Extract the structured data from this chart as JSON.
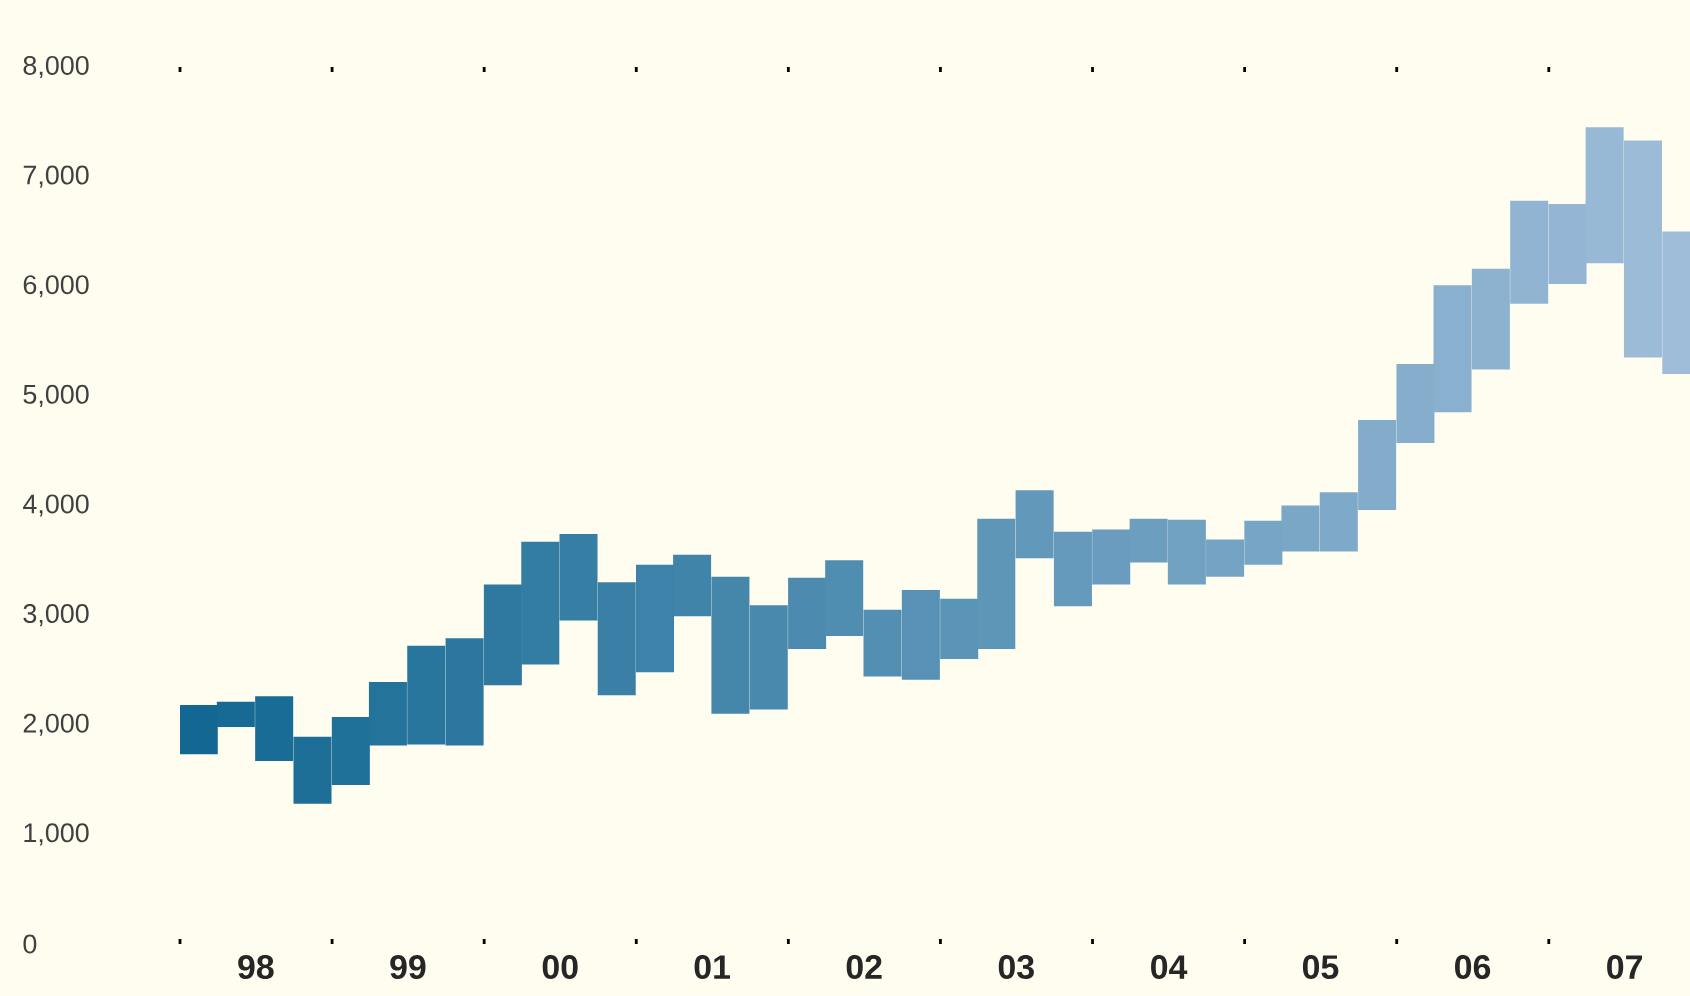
{
  "chart_data": {
    "type": "bar",
    "x": [
      "1998-02-15",
      "1998-05-15",
      "1998-08-15",
      "1998-11-15",
      "1999-02-15",
      "1999-05-15",
      "1999-08-15",
      "1999-11-15",
      "2000-02-15",
      "2000-05-15",
      "2000-08-15",
      "2000-11-15",
      "2001-02-15",
      "2001-05-15",
      "2001-08-15",
      "2001-11-15",
      "2002-02-15",
      "2002-05-15",
      "2002-08-15",
      "2002-11-15",
      "2003-02-15",
      "2003-05-15",
      "2003-08-15",
      "2003-11-15",
      "2004-02-15",
      "2004-05-15",
      "2004-08-15",
      "2004-11-15",
      "2005-02-15",
      "2005-05-15",
      "2005-08-15",
      "2005-11-15",
      "2006-02-15",
      "2006-05-15",
      "2006-08-15",
      "2006-11-15",
      "2007-02-15",
      "2007-05-15",
      "2007-08-15",
      "2007-11-15"
    ],
    "base": [
      1730,
      1980,
      1670,
      1280,
      1450,
      1810,
      1820,
      1810,
      2360,
      2550,
      2950,
      2270,
      2480,
      2990,
      2100,
      2140,
      2690,
      2810,
      2440,
      2410,
      2600,
      2690,
      3520,
      3080,
      3280,
      3480,
      3280,
      3350,
      3460,
      3580,
      3580,
      3960,
      4570,
      4850,
      5240,
      5840,
      6020,
      6210,
      5350,
      5200
    ],
    "values": [
      450,
      230,
      590,
      610,
      620,
      580,
      900,
      980,
      920,
      1120,
      790,
      1030,
      980,
      560,
      1250,
      950,
      650,
      690,
      610,
      820,
      550,
      1190,
      620,
      680,
      500,
      400,
      590,
      340,
      400,
      420,
      540,
      820,
      720,
      1160,
      920,
      940,
      730,
      1240,
      1980,
      1300
    ],
    "colors": [
      "#126892",
      "#166a94",
      "#196c96",
      "#1d6f97",
      "#207199",
      "#24739b",
      "#28759d",
      "#2b779f",
      "#2f79a1",
      "#337ca2",
      "#367ea4",
      "#3a80a6",
      "#3d82a8",
      "#4184aa",
      "#4587ab",
      "#4889ad",
      "#4c8baf",
      "#4f8db1",
      "#538fb3",
      "#5791b5",
      "#5a94b6",
      "#5e96b8",
      "#6298ba",
      "#659abc",
      "#699cbe",
      "#6c9ec0",
      "#70a1c1",
      "#74a3c3",
      "#77a5c5",
      "#7ba7c7",
      "#7ea9c9",
      "#82acca",
      "#86aecc",
      "#89b0ce",
      "#8db2d0",
      "#91b4d2",
      "#94b6d4",
      "#98b9d5",
      "#9bbbd7",
      "#9fbdd9"
    ],
    "xlim": [
      "1998-01-01",
      "2007-12-06"
    ],
    "xticks": [
      {
        "value": "1998-01-01",
        "label": null
      },
      {
        "value": "1998-07-02",
        "label": "98"
      },
      {
        "value": "1999-01-01",
        "label": null
      },
      {
        "value": "1999-07-02",
        "label": "99"
      },
      {
        "value": "2000-01-01",
        "label": null
      },
      {
        "value": "2000-07-02",
        "label": "00"
      },
      {
        "value": "2001-01-01",
        "label": null
      },
      {
        "value": "2001-07-02",
        "label": "01"
      },
      {
        "value": "2002-01-01",
        "label": null
      },
      {
        "value": "2002-07-02",
        "label": "02"
      },
      {
        "value": "2003-01-01",
        "label": null
      },
      {
        "value": "2003-07-02",
        "label": "03"
      },
      {
        "value": "2004-01-01",
        "label": null
      },
      {
        "value": "2004-07-02",
        "label": "04"
      },
      {
        "value": "2005-01-01",
        "label": null
      },
      {
        "value": "2005-07-02",
        "label": "05"
      },
      {
        "value": "2006-01-01",
        "label": null
      },
      {
        "value": "2006-07-02",
        "label": "06"
      },
      {
        "value": "2007-01-01",
        "label": null
      },
      {
        "value": "2007-07-02",
        "label": "07"
      }
    ],
    "ylim": [
      0,
      8000
    ],
    "yticks": [
      {
        "value": 0,
        "label": "0"
      },
      {
        "value": 1000,
        "label": "1,000"
      },
      {
        "value": 2000,
        "label": "2,000"
      },
      {
        "value": 3000,
        "label": "3,000"
      },
      {
        "value": 4000,
        "label": "4,000"
      },
      {
        "value": 5000,
        "label": "5,000"
      },
      {
        "value": 6000,
        "label": "6,000"
      },
      {
        "value": 7000,
        "label": "7,000"
      },
      {
        "value": 8000,
        "label": "8,000"
      }
    ]
  }
}
